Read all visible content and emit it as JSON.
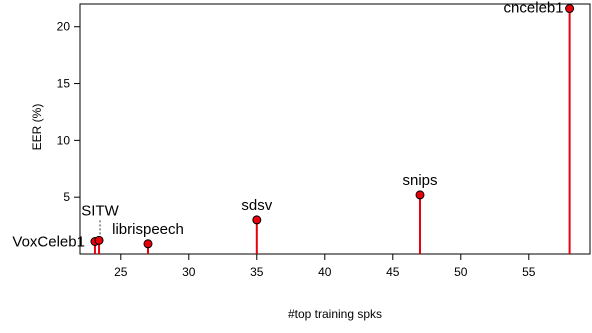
{
  "chart_data": {
    "type": "lollipop",
    "title": "",
    "xlabel": "#top training spks",
    "ylabel": "EER (%)",
    "xlim": [
      22,
      59.5
    ],
    "ylim": [
      0,
      22
    ],
    "xticks": [
      25,
      30,
      35,
      40,
      45,
      50,
      55
    ],
    "yticks": [
      5,
      10,
      15,
      20
    ],
    "grid": false,
    "points": [
      {
        "label": "VoxCeleb1",
        "x": 23.1,
        "y": 1.1
      },
      {
        "label": "SITW",
        "x": 23.4,
        "y": 1.2
      },
      {
        "label": "librispeech",
        "x": 27,
        "y": 0.9
      },
      {
        "label": "sdsv",
        "x": 35,
        "y": 3.0
      },
      {
        "label": "snips",
        "x": 47,
        "y": 5.2
      },
      {
        "label": "cnceleb1",
        "x": 58,
        "y": 21.6
      }
    ],
    "colors": {
      "stem": "#e8000b",
      "marker_fill": "#e8000b",
      "marker_edge": "#000000"
    }
  }
}
